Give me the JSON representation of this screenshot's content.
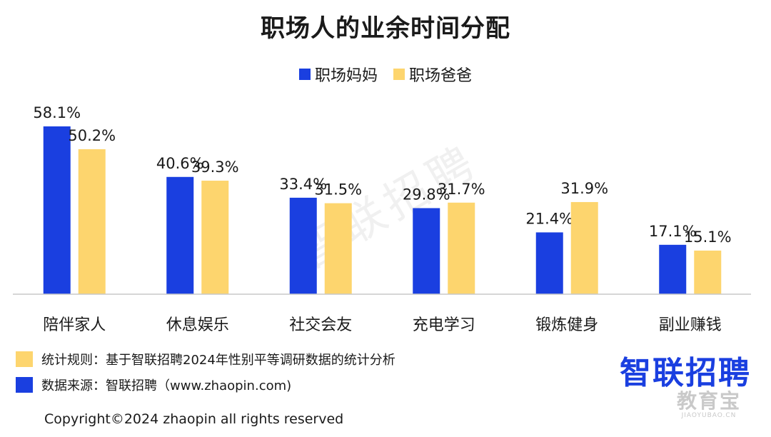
{
  "chart_data": {
    "type": "bar",
    "title": "职场人的业余时间分配",
    "categories": [
      "陪伴家人",
      "休息娱乐",
      "社交会友",
      "充电学习",
      "锻炼健身",
      "副业赚钱"
    ],
    "series": [
      {
        "name": "职场妈妈",
        "values": [
          58.1,
          40.6,
          33.4,
          29.8,
          21.4,
          17.1
        ],
        "color": "#1a3fe0"
      },
      {
        "name": "职场爸爸",
        "values": [
          50.2,
          39.3,
          31.5,
          31.7,
          31.9,
          15.1
        ],
        "color": "#fdd56e"
      }
    ],
    "value_labels": {
      "职场妈妈": [
        "58.1%",
        "40.6%",
        "33.4%",
        "29.8%",
        "21.4%",
        "17.1%"
      ],
      "职场爸爸": [
        "50.2%",
        "39.3%",
        "31.5%",
        "31.7%",
        "31.9%",
        "15.1%"
      ]
    },
    "ylim": [
      0,
      58.1
    ],
    "grid": false,
    "legend_position": "top-center"
  },
  "footnotes": {
    "rule": "统计规则：基于智联招聘2024年性别平等调研数据的统计分析",
    "source": "数据来源：智联招聘（www.zhaopin.com)",
    "rule_color": "#fdd56e",
    "source_color": "#1a3fe0"
  },
  "brand": {
    "logo_text": "智联招聘",
    "color": "#1a3fe0"
  },
  "watermark": {
    "center_text": "智联招聘",
    "corner_cn": "教育宝",
    "corner_url": "JIAOYUBAO.CN"
  },
  "copyright": "Copyright©2024 zhaopin all rights reserved"
}
